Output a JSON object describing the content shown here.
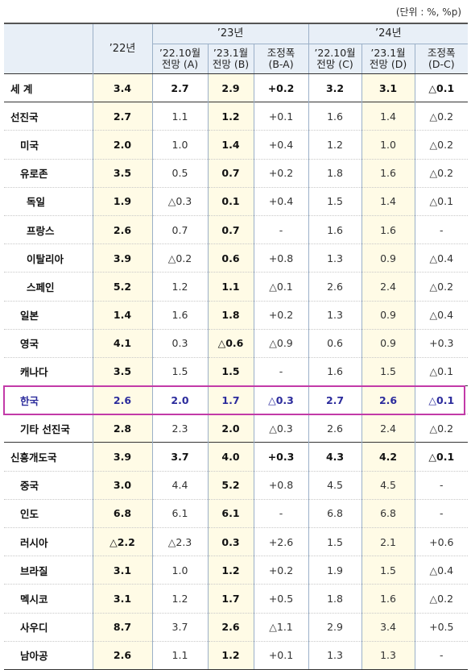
{
  "unit_label": "(단위 : %, %p)",
  "header": {
    "y22": "’22년",
    "y23": "’23년",
    "y24": "’24년",
    "sub": {
      "oct_a": [
        "’22.10월",
        "전망 (A)"
      ],
      "jan_b": [
        "’23.1월",
        "전망 (B)"
      ],
      "adj_ba": [
        "조정폭",
        "(B-A)"
      ],
      "oct_c": [
        "’22.10월",
        "전망 (C)"
      ],
      "jan_d": [
        "’23.1월",
        "전망 (D)"
      ],
      "adj_dc": [
        "조정폭",
        "(D-C)"
      ]
    }
  },
  "rows": [
    {
      "name": "세  계",
      "values": [
        "3.4",
        "2.7",
        "2.9",
        "+0.2",
        "3.2",
        "3.1",
        "△0.1"
      ]
    },
    {
      "name": "선진국",
      "values": [
        "2.7",
        "1.1",
        "1.2",
        "+0.1",
        "1.6",
        "1.4",
        "△0.2"
      ]
    },
    {
      "name": "미국",
      "values": [
        "2.0",
        "1.0",
        "1.4",
        "+0.4",
        "1.2",
        "1.0",
        "△0.2"
      ]
    },
    {
      "name": "유로존",
      "values": [
        "3.5",
        "0.5",
        "0.7",
        "+0.2",
        "1.8",
        "1.6",
        "△0.2"
      ]
    },
    {
      "name": "독일",
      "values": [
        "1.9",
        "△0.3",
        "0.1",
        "+0.4",
        "1.5",
        "1.4",
        "△0.1"
      ]
    },
    {
      "name": "프랑스",
      "values": [
        "2.6",
        "0.7",
        "0.7",
        "-",
        "1.6",
        "1.6",
        "-"
      ]
    },
    {
      "name": "이탈리아",
      "values": [
        "3.9",
        "△0.2",
        "0.6",
        "+0.8",
        "1.3",
        "0.9",
        "△0.4"
      ]
    },
    {
      "name": "스페인",
      "values": [
        "5.2",
        "1.2",
        "1.1",
        "△0.1",
        "2.6",
        "2.4",
        "△0.2"
      ]
    },
    {
      "name": "일본",
      "values": [
        "1.4",
        "1.6",
        "1.8",
        "+0.2",
        "1.3",
        "0.9",
        "△0.4"
      ]
    },
    {
      "name": "영국",
      "values": [
        "4.1",
        "0.3",
        "△0.6",
        "△0.9",
        "0.6",
        "0.9",
        "+0.3"
      ]
    },
    {
      "name": "캐나다",
      "values": [
        "3.5",
        "1.5",
        "1.5",
        "-",
        "1.6",
        "1.5",
        "△0.1"
      ]
    },
    {
      "name": "한국",
      "values": [
        "2.6",
        "2.0",
        "1.7",
        "△0.3",
        "2.7",
        "2.6",
        "△0.1"
      ]
    },
    {
      "name": "기타 선진국",
      "values": [
        "2.8",
        "2.3",
        "2.0",
        "△0.3",
        "2.6",
        "2.4",
        "△0.2"
      ]
    },
    {
      "name": "신흥개도국",
      "values": [
        "3.9",
        "3.7",
        "4.0",
        "+0.3",
        "4.3",
        "4.2",
        "△0.1"
      ]
    },
    {
      "name": "중국",
      "values": [
        "3.0",
        "4.4",
        "5.2",
        "+0.8",
        "4.5",
        "4.5",
        "-"
      ]
    },
    {
      "name": "인도",
      "values": [
        "6.8",
        "6.1",
        "6.1",
        "-",
        "6.8",
        "6.8",
        "-"
      ]
    },
    {
      "name": "러시아",
      "values": [
        "△2.2",
        "△2.3",
        "0.3",
        "+2.6",
        "1.5",
        "2.1",
        "+0.6"
      ]
    },
    {
      "name": "브라질",
      "values": [
        "3.1",
        "1.0",
        "1.2",
        "+0.2",
        "1.9",
        "1.5",
        "△0.4"
      ]
    },
    {
      "name": "멕시코",
      "values": [
        "3.1",
        "1.2",
        "1.7",
        "+0.5",
        "1.8",
        "1.6",
        "△0.2"
      ]
    },
    {
      "name": "사우디",
      "values": [
        "8.7",
        "3.7",
        "2.6",
        "△1.1",
        "2.9",
        "3.4",
        "+0.5"
      ]
    },
    {
      "name": "남아공",
      "values": [
        "2.6",
        "1.1",
        "1.2",
        "+0.1",
        "1.3",
        "1.3",
        "-"
      ]
    }
  ],
  "colors": {
    "header_bg": "#e8eff7",
    "highlight_col_bg": "#fffbe6",
    "korea_text": "#2c2c9c",
    "korea_border": "#c23aa8"
  }
}
